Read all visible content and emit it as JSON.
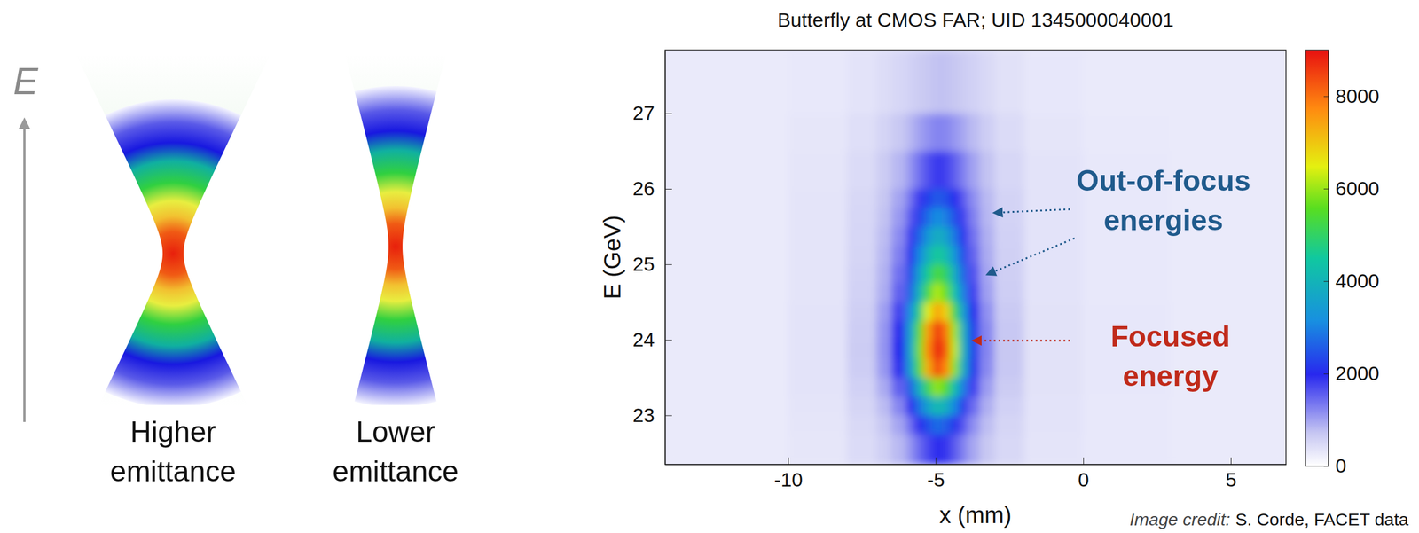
{
  "diagram": {
    "axis_label": "E",
    "panels": [
      {
        "label": "Higher emittance"
      },
      {
        "label": "Lower emittance"
      }
    ]
  },
  "chart_data": {
    "type": "heatmap",
    "title": "Butterfly at CMOS FAR; UID 1345000040001",
    "x_label": "x (mm)",
    "y_label": "E (GeV)",
    "xlim": [
      -14.17,
      6.87
    ],
    "ylim": [
      22.35,
      27.84
    ],
    "xticks": [
      -10,
      -5,
      0,
      5
    ],
    "yticks": [
      23,
      24,
      25,
      26,
      27
    ],
    "x_edges": [
      -14.17,
      -10,
      -8,
      -7,
      -6.5,
      -6,
      -5.7,
      -5.4,
      -5.1,
      -4.8,
      -4.5,
      -4.2,
      -3.9,
      -3.5,
      -3,
      -2,
      0,
      3,
      6.87
    ],
    "y_edges": [
      22.35,
      22.75,
      23.0,
      23.25,
      23.5,
      23.75,
      24.0,
      24.25,
      24.5,
      24.75,
      25.0,
      25.25,
      25.5,
      25.75,
      26.0,
      26.5,
      27.0,
      27.84
    ],
    "cells": [
      [
        270,
        320,
        450,
        610,
        820,
        1120,
        1450,
        1740,
        1950,
        1870,
        1580,
        1270,
        970,
        700,
        490,
        340,
        290,
        270
      ],
      [
        270,
        330,
        480,
        690,
        980,
        1430,
        1950,
        2430,
        2750,
        2600,
        2130,
        1620,
        1160,
        790,
        530,
        350,
        290,
        270
      ],
      [
        270,
        340,
        530,
        800,
        1220,
        1950,
        2810,
        3620,
        4150,
        3870,
        3060,
        2190,
        1440,
        910,
        580,
        360,
        290,
        270
      ],
      [
        270,
        350,
        580,
        940,
        1530,
        2610,
        3910,
        5160,
        5950,
        5500,
        4260,
        2920,
        1800,
        1060,
        640,
        370,
        300,
        270
      ],
      [
        270,
        350,
        630,
        1090,
        1900,
        3480,
        5410,
        7280,
        8450,
        7750,
        5880,
        3870,
        2220,
        1210,
        690,
        370,
        300,
        270
      ],
      [
        270,
        350,
        640,
        1120,
        1980,
        3660,
        5710,
        7710,
        8950,
        8200,
        6210,
        4060,
        2310,
        1240,
        700,
        370,
        300,
        270
      ],
      [
        270,
        350,
        630,
        1100,
        1930,
        3550,
        5530,
        7450,
        8650,
        7930,
        6010,
        3950,
        2250,
        1220,
        690,
        370,
        300,
        270
      ],
      [
        270,
        350,
        610,
        1030,
        1750,
        3130,
        4810,
        6430,
        7450,
        6850,
        5230,
        3490,
        2050,
        1150,
        670,
        370,
        300,
        270
      ],
      [
        270,
        340,
        570,
        920,
        1520,
        2650,
        4010,
        5320,
        6150,
        5670,
        4360,
        2950,
        1780,
        1030,
        620,
        360,
        290,
        270
      ],
      [
        270,
        340,
        550,
        880,
        1400,
        2370,
        3530,
        4640,
        5350,
        4950,
        3840,
        2650,
        1650,
        990,
        610,
        360,
        290,
        270
      ],
      [
        270,
        340,
        530,
        830,
        1280,
        2090,
        3050,
        3960,
        4550,
        4230,
        3320,
        2350,
        1510,
        940,
        590,
        360,
        290,
        270
      ],
      [
        270,
        340,
        520,
        790,
        1180,
        1840,
        2630,
        3370,
        3850,
        3600,
        2870,
        2080,
        1390,
        900,
        580,
        360,
        290,
        270
      ],
      [
        270,
        340,
        510,
        740,
        1070,
        1600,
        2210,
        2770,
        3150,
        2970,
        2410,
        1810,
        1270,
        850,
        560,
        360,
        290,
        270
      ],
      [
        270,
        340,
        490,
        710,
        980,
        1390,
        1850,
        2260,
        2550,
        2430,
        2020,
        1590,
        1170,
        820,
        550,
        360,
        290,
        270
      ],
      [
        270,
        330,
        460,
        640,
        840,
        1110,
        1410,
        1660,
        1850,
        1790,
        1540,
        1280,
        1000,
        740,
        510,
        350,
        290,
        270
      ],
      [
        270,
        310,
        410,
        540,
        680,
        840,
        1010,
        1140,
        1250,
        1230,
        1100,
        970,
        800,
        620,
        450,
        330,
        280,
        270
      ],
      [
        260,
        290,
        350,
        430,
        500,
        580,
        650,
        700,
        750,
        750,
        700,
        650,
        580,
        480,
        380,
        300,
        270,
        260
      ]
    ],
    "colorbar": {
      "range": [
        0,
        9000
      ],
      "ticks": [
        0,
        2000,
        4000,
        6000,
        8000
      ]
    },
    "annotations": [
      {
        "text": "Out-of-focus energies",
        "color": "#1f5a8c"
      },
      {
        "text": "Focused energy",
        "color": "#c02a1a"
      }
    ]
  },
  "credit": {
    "prefix": "Image credit:",
    "text": "S. Corde, FACET data"
  }
}
